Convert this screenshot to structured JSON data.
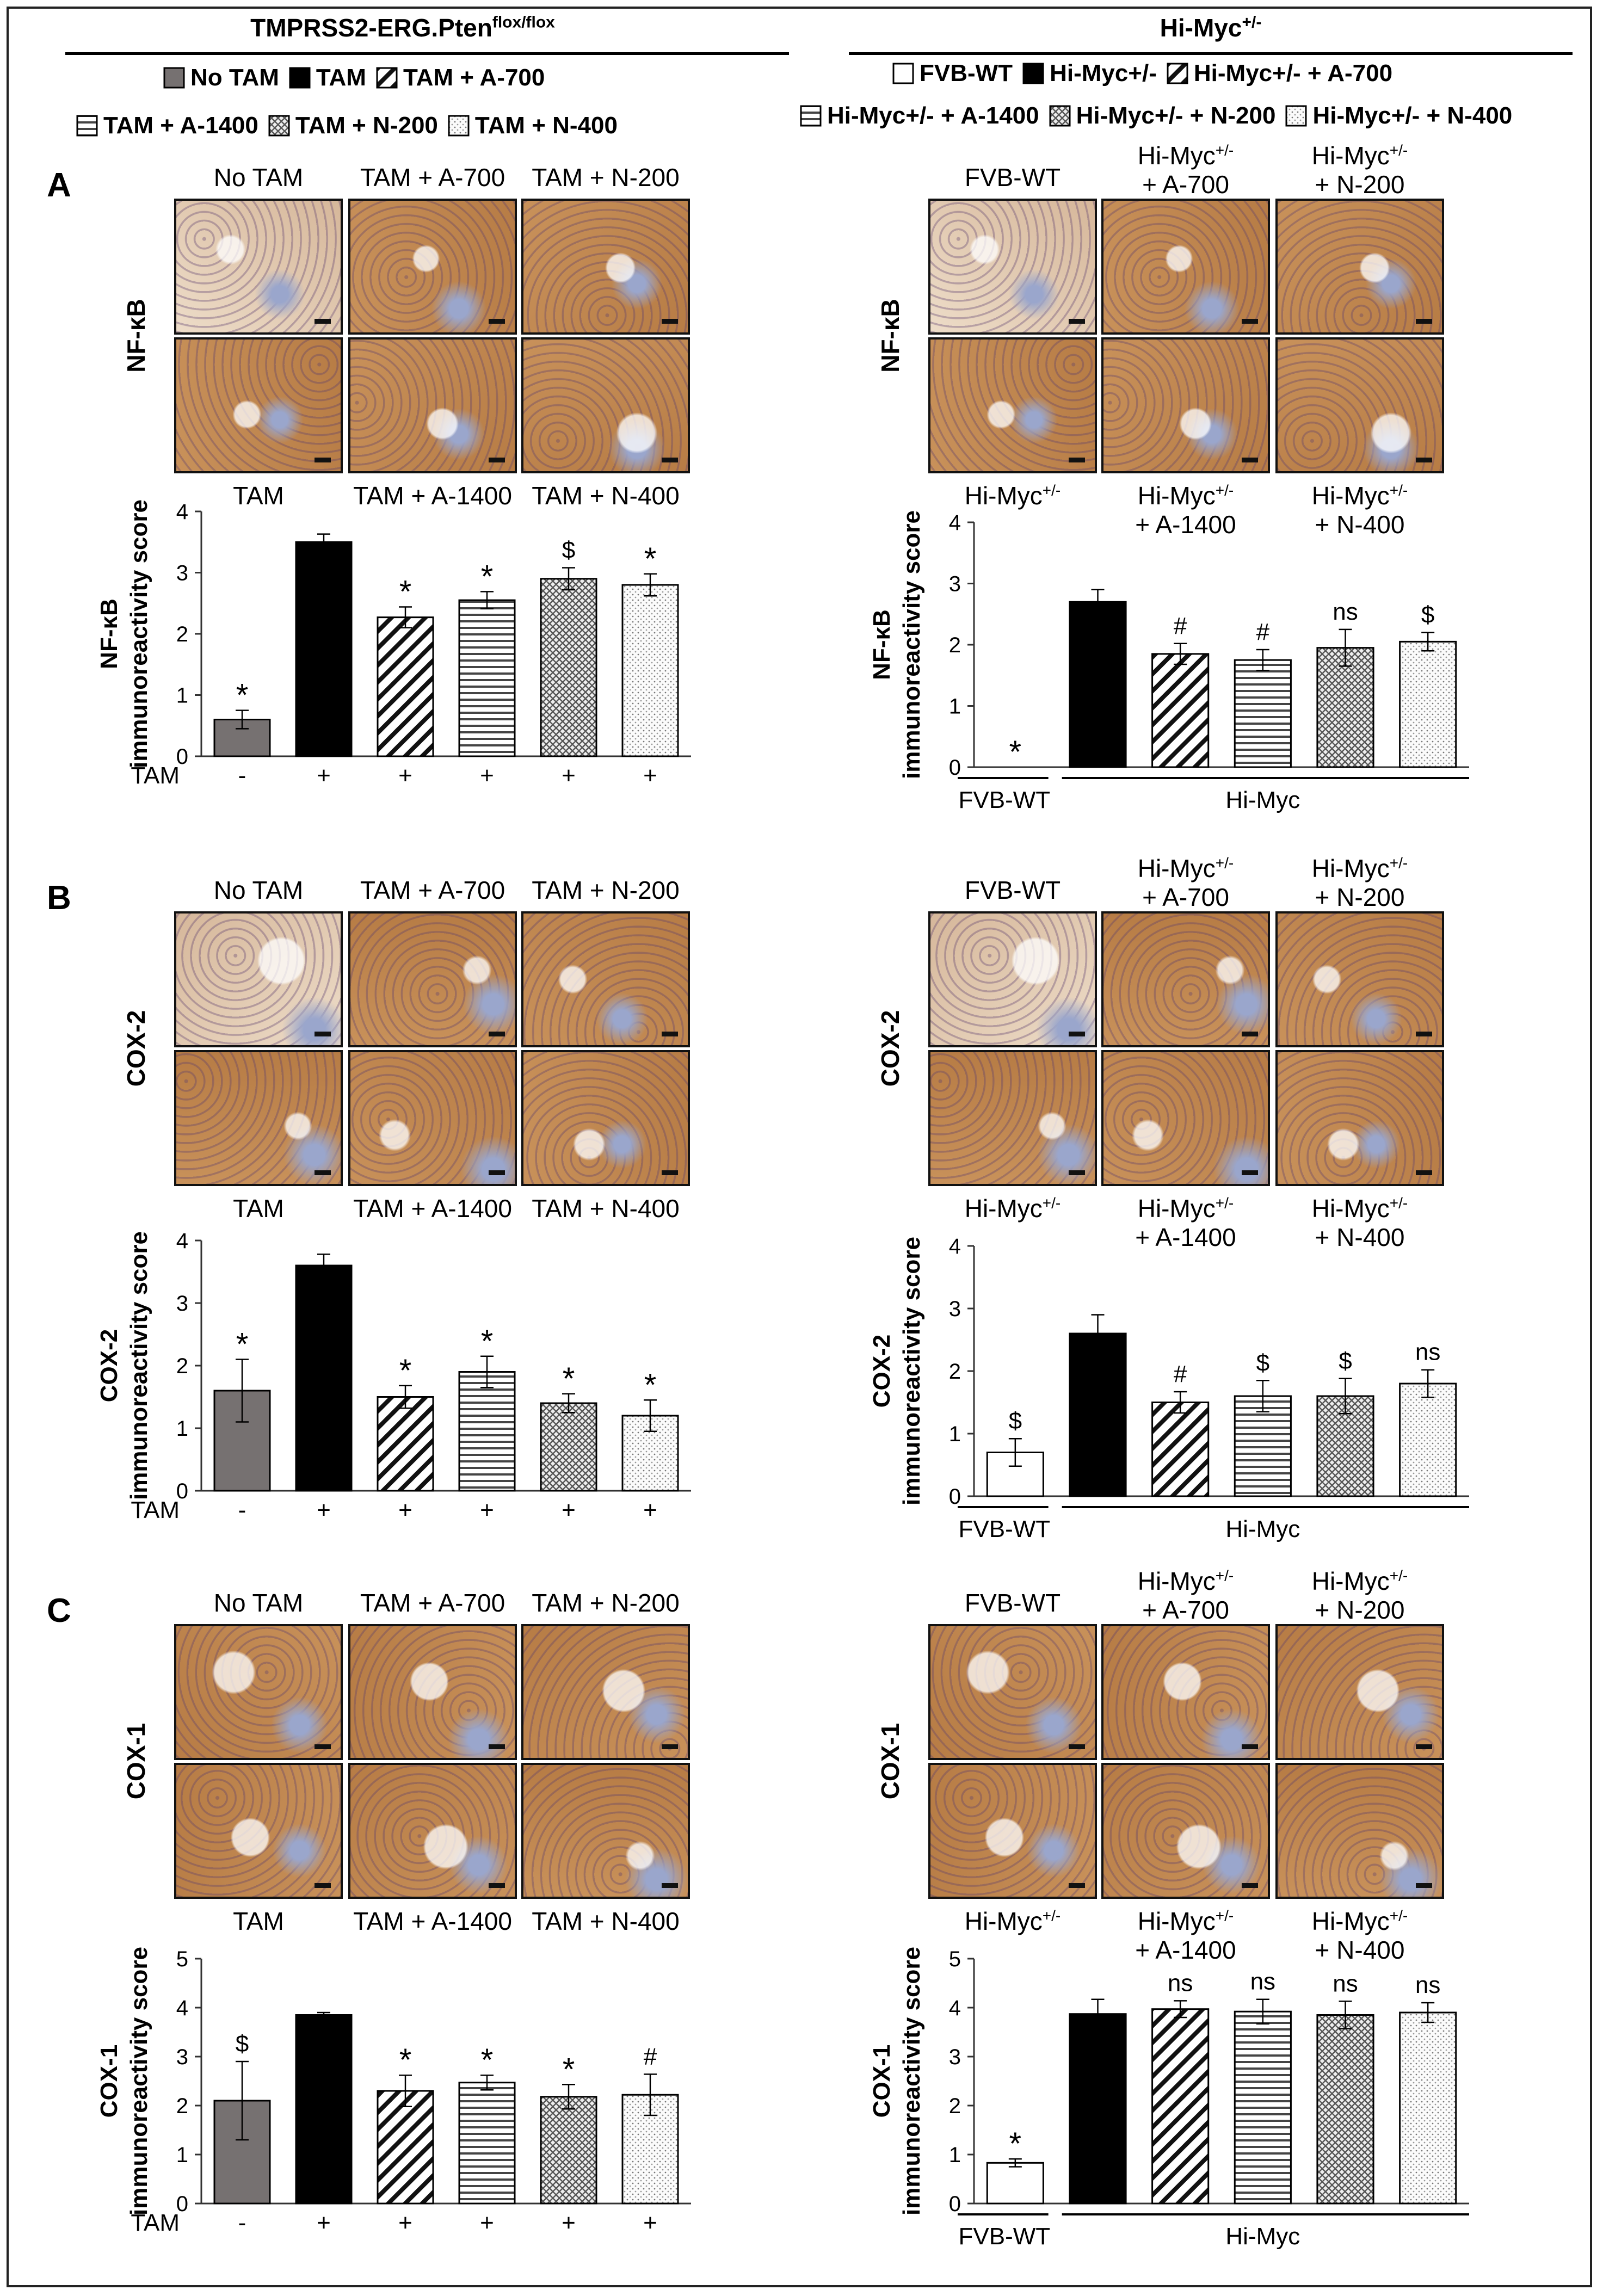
{
  "groups": {
    "left_title": "TMPRSS2-ERG.Pten",
    "left_title_sup": "flox/flox",
    "right_title": "Hi-Myc",
    "right_title_sup": "+/-"
  },
  "left_legend": [
    {
      "label": "No TAM",
      "pattern": "grey"
    },
    {
      "label": "TAM",
      "pattern": "black"
    },
    {
      "label": "TAM + A-700",
      "pattern": "diag"
    },
    {
      "label": "TAM + A-1400",
      "pattern": "horiz"
    },
    {
      "label": "TAM + N-200",
      "pattern": "weave"
    },
    {
      "label": "TAM + N-400",
      "pattern": "dots"
    }
  ],
  "right_legend": [
    {
      "label": "FVB-WT",
      "pattern": "white"
    },
    {
      "label": "Hi-Myc+/-",
      "pattern": "black"
    },
    {
      "label": "Hi-Myc+/- + A-700",
      "pattern": "diag"
    },
    {
      "label": "Hi-Myc+/- + A-1400",
      "pattern": "horiz"
    },
    {
      "label": "Hi-Myc+/- + N-200",
      "pattern": "weave"
    },
    {
      "label": "Hi-Myc+/- + N-400",
      "pattern": "dots"
    }
  ],
  "panels": [
    {
      "letter": "A",
      "stain": "NF-κB"
    },
    {
      "letter": "B",
      "stain": "COX-2"
    },
    {
      "letter": "C",
      "stain": "COX-1"
    }
  ],
  "image_labels": {
    "left_top": [
      "No TAM",
      "TAM + A-700",
      "TAM + N-200"
    ],
    "left_bottom": [
      "TAM",
      "TAM + A-1400",
      "TAM + N-400"
    ],
    "right_top": [
      "FVB-WT",
      "Hi-Myc+/-\n+ A-700",
      "Hi-Myc+/-\n+ N-200"
    ],
    "right_bottom": [
      "Hi-Myc+/-",
      "Hi-Myc+/-\n+ A-1400",
      "Hi-Myc+/-\n+ N-400"
    ]
  },
  "colors": {
    "grey_bar": "#767171",
    "black_bar": "#000000",
    "tissue_brown": "#c8915a",
    "tissue_blue": "#9aa6cc",
    "tissue_bg": "#eddcc8"
  },
  "chart_data": [
    {
      "type": "bar",
      "panel": "A",
      "side": "left",
      "ylabel": "NF-κB\nimmunoreactivity score",
      "ylim": [
        0,
        4
      ],
      "yticks": [
        0,
        1,
        2,
        3,
        4
      ],
      "values": [
        0.6,
        3.5,
        2.27,
        2.55,
        2.9,
        2.8
      ],
      "errors": [
        0.15,
        0.13,
        0.17,
        0.14,
        0.18,
        0.18
      ],
      "annotations": [
        "*",
        "",
        "*",
        "*",
        "$",
        "*"
      ],
      "tam_label": "TAM",
      "tam": [
        "-",
        "+",
        "+",
        "+",
        "+",
        "+"
      ],
      "patterns": [
        "grey",
        "black",
        "diag",
        "horiz",
        "weave",
        "dots"
      ]
    },
    {
      "type": "bar",
      "panel": "A",
      "side": "right",
      "ylabel": "NF-κB\nimmunoreactivity score",
      "ylim": [
        0,
        4
      ],
      "yticks": [
        0,
        1,
        2,
        3,
        4
      ],
      "values": [
        0,
        2.7,
        1.85,
        1.75,
        1.95,
        2.05
      ],
      "errors": [
        0,
        0.2,
        0.17,
        0.17,
        0.3,
        0.15
      ],
      "annotations": [
        "*",
        "",
        "#",
        "#",
        "ns",
        "$"
      ],
      "group_labels": [
        "FVB-WT",
        "Hi-Myc"
      ],
      "patterns": [
        "white",
        "black",
        "diag",
        "horiz",
        "weave",
        "dots"
      ]
    },
    {
      "type": "bar",
      "panel": "B",
      "side": "left",
      "ylabel": "COX-2\nimmunoreactivity score",
      "ylim": [
        0,
        4
      ],
      "yticks": [
        0,
        1,
        2,
        3,
        4
      ],
      "values": [
        1.6,
        3.6,
        1.5,
        1.9,
        1.4,
        1.2
      ],
      "errors": [
        0.5,
        0.18,
        0.18,
        0.25,
        0.15,
        0.25
      ],
      "annotations": [
        "*",
        "",
        "*",
        "*",
        "*",
        "*"
      ],
      "tam_label": "TAM",
      "tam": [
        "-",
        "+",
        "+",
        "+",
        "+",
        "+"
      ],
      "patterns": [
        "grey",
        "black",
        "diag",
        "horiz",
        "weave",
        "dots"
      ]
    },
    {
      "type": "bar",
      "panel": "B",
      "side": "right",
      "ylabel": "COX-2\nimmunoreactivity score",
      "ylim": [
        0,
        4
      ],
      "yticks": [
        0,
        1,
        2,
        3,
        4
      ],
      "values": [
        0.7,
        2.6,
        1.5,
        1.6,
        1.6,
        1.8
      ],
      "errors": [
        0.22,
        0.3,
        0.17,
        0.25,
        0.28,
        0.22
      ],
      "annotations": [
        "$",
        "",
        "#",
        "$",
        "$",
        "ns"
      ],
      "group_labels": [
        "FVB-WT",
        "Hi-Myc"
      ],
      "patterns": [
        "white",
        "black",
        "diag",
        "horiz",
        "weave",
        "dots"
      ]
    },
    {
      "type": "bar",
      "panel": "C",
      "side": "left",
      "ylabel": "COX-1\nimmunoreactivity score",
      "ylim": [
        0,
        5
      ],
      "yticks": [
        0,
        1,
        2,
        3,
        4,
        5
      ],
      "values": [
        2.1,
        3.85,
        2.3,
        2.47,
        2.18,
        2.22
      ],
      "errors": [
        0.8,
        0.05,
        0.32,
        0.15,
        0.25,
        0.42
      ],
      "annotations": [
        "$",
        "",
        "*",
        "*",
        "*",
        "#"
      ],
      "tam_label": "TAM",
      "tam": [
        "-",
        "+",
        "+",
        "+",
        "+",
        "+"
      ],
      "patterns": [
        "grey",
        "black",
        "diag",
        "horiz",
        "weave",
        "dots"
      ]
    },
    {
      "type": "bar",
      "panel": "C",
      "side": "right",
      "ylabel": "COX-1\nimmunoreactivity score",
      "ylim": [
        0,
        5
      ],
      "yticks": [
        0,
        1,
        2,
        3,
        4,
        5
      ],
      "values": [
        0.83,
        3.87,
        3.97,
        3.92,
        3.85,
        3.9
      ],
      "errors": [
        0.08,
        0.3,
        0.17,
        0.25,
        0.28,
        0.2
      ],
      "annotations": [
        "*",
        "",
        "ns",
        "ns",
        "ns",
        "ns"
      ],
      "group_labels": [
        "FVB-WT",
        "Hi-Myc"
      ],
      "patterns": [
        "white",
        "black",
        "diag",
        "horiz",
        "weave",
        "dots"
      ]
    }
  ]
}
